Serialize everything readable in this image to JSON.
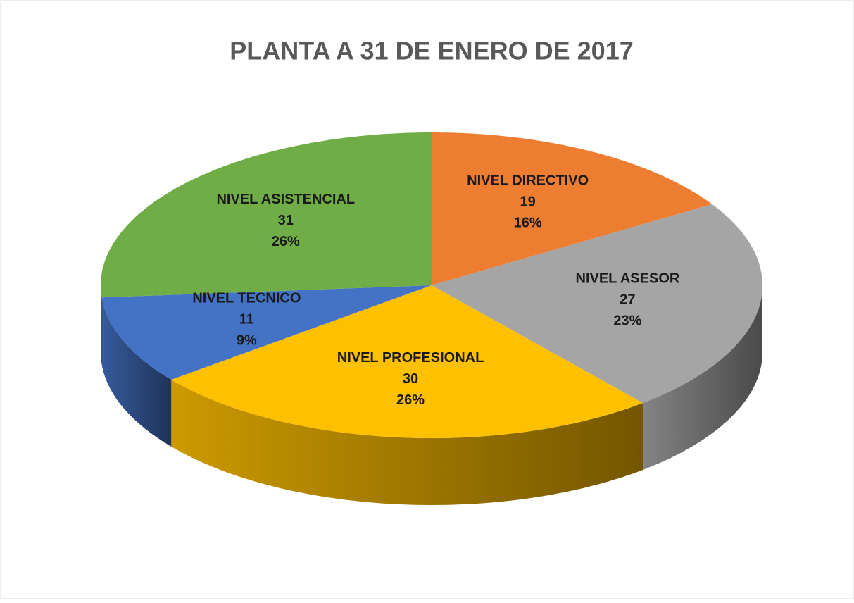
{
  "chart_data": {
    "type": "pie3d",
    "title": "PLANTA A 31 DE ENERO DE 2017",
    "categories": [
      "NIVEL DIRECTIVO",
      "NIVEL ASESOR",
      "NIVEL PROFESIONAL",
      "NIVEL TECNICO",
      "NIVEL ASISTENCIAL"
    ],
    "values": [
      19,
      27,
      30,
      11,
      31
    ],
    "percent_labels": [
      "16%",
      "23%",
      "26%",
      "9%",
      "26%"
    ],
    "colors": [
      "#ed7d31",
      "#a5a5a5",
      "#ffc000",
      "#4472c4",
      "#70ad47"
    ]
  }
}
